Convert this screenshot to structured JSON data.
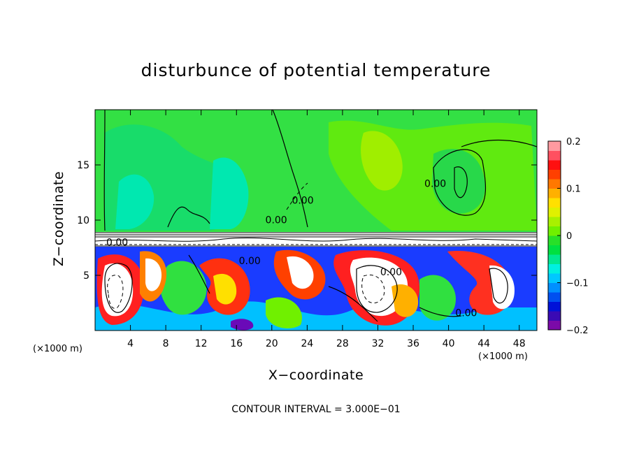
{
  "chart_data": {
    "type": "heatmap",
    "title": "disturbunce of potential temperature",
    "xlabel": "X−coordinate",
    "ylabel": "Z−coordinate",
    "x_unit_left": "(×1000 m)",
    "x_unit_right": "(×1000 m)",
    "note": "CONTOUR INTERVAL = 3.000E−01",
    "xlim": [
      0,
      50
    ],
    "ylim": [
      0,
      20
    ],
    "x_ticks": [
      4,
      8,
      12,
      16,
      20,
      24,
      28,
      32,
      36,
      40,
      44,
      48
    ],
    "y_ticks": [
      5,
      10,
      15
    ],
    "colorbar": {
      "min": -0.2,
      "max": 0.2,
      "tick_values": [
        0.2,
        0.1,
        0,
        -0.1,
        -0.2
      ],
      "tick_labels": [
        "0.2",
        "0.1",
        "0",
        "−0.1",
        "−0.2"
      ],
      "colors": [
        "#7b0aa8",
        "#3a0ab4",
        "#0012d8",
        "#0050f0",
        "#0090ff",
        "#00c8ff",
        "#00f0e0",
        "#00e890",
        "#00e040",
        "#28e028",
        "#70f000",
        "#a8f000",
        "#e0f000",
        "#ffe000",
        "#ffb000",
        "#ff7800",
        "#ff4000",
        "#ff1010",
        "#ff5060",
        "#ff9aa0"
      ]
    },
    "contour_labels": [
      {
        "text": "0.00",
        "x": 2.5,
        "z": 7.7
      },
      {
        "text": "0.00",
        "x": 17.5,
        "z": 6.0
      },
      {
        "text": "0.00",
        "x": 20.5,
        "z": 9.7
      },
      {
        "text": "0.00",
        "x": 23.5,
        "z": 11.5
      },
      {
        "text": "0.00",
        "x": 33.5,
        "z": 5.0
      },
      {
        "text": "0.00",
        "x": 38.5,
        "z": 13.0
      },
      {
        "text": "0.00",
        "x": 42.0,
        "z": 1.3
      }
    ]
  }
}
